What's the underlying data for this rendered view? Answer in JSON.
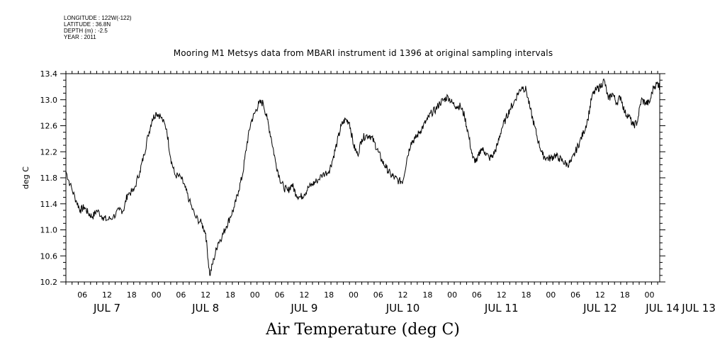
{
  "header": {
    "longitude": "LONGITUDE : 122W(-122)",
    "latitude": "LATITUDE : 36.8N",
    "depth": "DEPTH (m) : -2.5",
    "year": "YEAR : 2011"
  },
  "chart_data": {
    "type": "line",
    "title": "Mooring M1 Metsys data from MBARI instrument id 1396 at original sampling intervals",
    "xlabel": "Air Temperature (deg C)",
    "ylabel": "deg C",
    "ylim": [
      10.2,
      13.4
    ],
    "yticks": [
      "10.2",
      "10.6",
      "11.0",
      "11.4",
      "11.8",
      "12.2",
      "12.6",
      "13.0",
      "13.4"
    ],
    "x_unit": "hours since JUL 6 2011 00:00",
    "xlim": [
      2,
      146.5
    ],
    "hour_ticks": [
      "06",
      "12",
      "18",
      "00",
      "06",
      "12",
      "18",
      "00",
      "06",
      "12",
      "18",
      "00",
      "06",
      "12",
      "18",
      "00",
      "06",
      "12",
      "18",
      "00",
      "06",
      "12",
      "18",
      "00",
      "06",
      "12",
      "18",
      "00",
      "06",
      "12",
      "18",
      "00"
    ],
    "day_labels": [
      "JUL 7",
      "JUL 8",
      "JUL 9",
      "JUL 10",
      "JUL 11",
      "JUL 12",
      "JUL 13",
      "JUL 14"
    ],
    "grid": false,
    "series": [
      {
        "name": "",
        "points": [
          [
            2.0,
            11.9
          ],
          [
            3.0,
            11.7
          ],
          [
            4.5,
            11.45
          ],
          [
            5.5,
            11.3
          ],
          [
            6.5,
            11.35
          ],
          [
            7.5,
            11.25
          ],
          [
            8.5,
            11.2
          ],
          [
            9.5,
            11.3
          ],
          [
            11.0,
            11.2
          ],
          [
            12.0,
            11.15
          ],
          [
            13.5,
            11.2
          ],
          [
            15.0,
            11.3
          ],
          [
            16.0,
            11.3
          ],
          [
            17.0,
            11.55
          ],
          [
            18.5,
            11.6
          ],
          [
            20.0,
            11.9
          ],
          [
            21.0,
            12.15
          ],
          [
            22.0,
            12.45
          ],
          [
            23.0,
            12.7
          ],
          [
            24.0,
            12.8
          ],
          [
            25.0,
            12.75
          ],
          [
            26.5,
            12.55
          ],
          [
            27.5,
            12.1
          ],
          [
            28.5,
            11.85
          ],
          [
            30.0,
            11.8
          ],
          [
            31.0,
            11.65
          ],
          [
            32.0,
            11.45
          ],
          [
            33.5,
            11.2
          ],
          [
            35.0,
            11.1
          ],
          [
            36.0,
            10.95
          ],
          [
            37.0,
            10.3
          ],
          [
            38.0,
            10.55
          ],
          [
            39.0,
            10.8
          ],
          [
            40.0,
            10.9
          ],
          [
            41.0,
            11.05
          ],
          [
            42.0,
            11.2
          ],
          [
            43.0,
            11.35
          ],
          [
            44.0,
            11.6
          ],
          [
            45.0,
            11.85
          ],
          [
            46.0,
            12.3
          ],
          [
            47.0,
            12.65
          ],
          [
            48.0,
            12.8
          ],
          [
            49.0,
            12.95
          ],
          [
            50.0,
            12.95
          ],
          [
            51.0,
            12.7
          ],
          [
            52.0,
            12.4
          ],
          [
            53.0,
            12.05
          ],
          [
            54.0,
            11.8
          ],
          [
            55.0,
            11.65
          ],
          [
            56.0,
            11.6
          ],
          [
            57.0,
            11.7
          ],
          [
            58.0,
            11.55
          ],
          [
            59.0,
            11.5
          ],
          [
            60.0,
            11.55
          ],
          [
            61.0,
            11.65
          ],
          [
            62.0,
            11.7
          ],
          [
            63.0,
            11.75
          ],
          [
            64.5,
            11.85
          ],
          [
            66.0,
            11.9
          ],
          [
            67.0,
            12.1
          ],
          [
            68.0,
            12.35
          ],
          [
            69.0,
            12.6
          ],
          [
            70.0,
            12.7
          ],
          [
            71.0,
            12.65
          ],
          [
            72.0,
            12.3
          ],
          [
            73.0,
            12.15
          ],
          [
            74.0,
            12.4
          ],
          [
            75.0,
            12.45
          ],
          [
            76.0,
            12.45
          ],
          [
            77.0,
            12.35
          ],
          [
            78.0,
            12.2
          ],
          [
            79.0,
            12.05
          ],
          [
            80.0,
            11.95
          ],
          [
            81.0,
            11.85
          ],
          [
            82.0,
            11.8
          ],
          [
            83.0,
            11.75
          ],
          [
            84.0,
            11.75
          ],
          [
            85.0,
            12.1
          ],
          [
            86.0,
            12.35
          ],
          [
            87.0,
            12.4
          ],
          [
            88.0,
            12.5
          ],
          [
            89.0,
            12.6
          ],
          [
            90.0,
            12.7
          ],
          [
            91.0,
            12.8
          ],
          [
            92.0,
            12.85
          ],
          [
            93.0,
            12.95
          ],
          [
            94.0,
            13.0
          ],
          [
            95.0,
            13.05
          ],
          [
            96.0,
            12.95
          ],
          [
            97.0,
            12.9
          ],
          [
            98.0,
            12.9
          ],
          [
            99.0,
            12.75
          ],
          [
            100.0,
            12.45
          ],
          [
            101.0,
            12.1
          ],
          [
            102.0,
            12.05
          ],
          [
            103.0,
            12.25
          ],
          [
            104.0,
            12.2
          ],
          [
            105.0,
            12.1
          ],
          [
            106.0,
            12.15
          ],
          [
            107.0,
            12.3
          ],
          [
            108.0,
            12.55
          ],
          [
            109.0,
            12.7
          ],
          [
            110.0,
            12.85
          ],
          [
            111.0,
            12.95
          ],
          [
            112.0,
            13.1
          ],
          [
            113.0,
            13.2
          ],
          [
            114.0,
            13.15
          ],
          [
            115.0,
            12.85
          ],
          [
            116.0,
            12.6
          ],
          [
            117.0,
            12.35
          ],
          [
            118.0,
            12.15
          ],
          [
            119.0,
            12.1
          ],
          [
            120.0,
            12.1
          ],
          [
            121.0,
            12.15
          ],
          [
            122.0,
            12.1
          ],
          [
            123.0,
            12.05
          ],
          [
            124.0,
            12.0
          ],
          [
            125.0,
            12.05
          ],
          [
            126.0,
            12.2
          ],
          [
            127.0,
            12.35
          ],
          [
            128.0,
            12.5
          ],
          [
            129.0,
            12.7
          ],
          [
            130.0,
            13.05
          ],
          [
            131.0,
            13.15
          ],
          [
            132.0,
            13.2
          ],
          [
            133.0,
            13.3
          ],
          [
            134.0,
            13.0
          ],
          [
            135.0,
            13.1
          ],
          [
            136.0,
            12.95
          ],
          [
            137.0,
            13.05
          ],
          [
            138.0,
            12.8
          ],
          [
            139.0,
            12.75
          ],
          [
            140.0,
            12.6
          ],
          [
            141.0,
            12.65
          ],
          [
            142.0,
            13.0
          ],
          [
            143.0,
            12.95
          ],
          [
            144.0,
            12.95
          ],
          [
            145.0,
            13.2
          ],
          [
            146.0,
            13.25
          ],
          [
            146.5,
            13.2
          ]
        ]
      }
    ]
  }
}
